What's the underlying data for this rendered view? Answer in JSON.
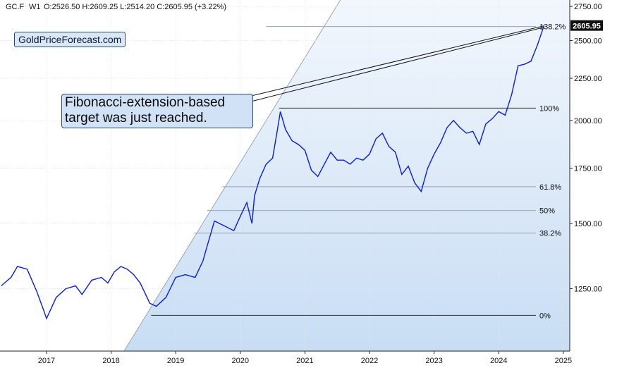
{
  "header": {
    "symbol": "GC.F",
    "interval": "W1",
    "ohlc": "O:2526.50  H:2609.25  L:2514.20  C:2605.95  (+3.22%)"
  },
  "logo": "GoldPriceForecast.com",
  "annotation": "Fibonacci-extension-based target was just reached.",
  "last_price": "2605.95",
  "chart_data": {
    "type": "line",
    "ylim": [
      1050,
      2800
    ],
    "y_ticks": [
      "2750.00",
      "2500.00",
      "2250.00",
      "2000.00",
      "1750.00",
      "1500.00",
      "1250.00"
    ],
    "y_tick_values": [
      2750,
      2500,
      2250,
      2000,
      1750,
      1500,
      1250
    ],
    "x_ticks": [
      "2017",
      "2018",
      "2019",
      "2020",
      "2021",
      "2022",
      "2023",
      "2024",
      "2025"
    ],
    "x_tick_values": [
      2017,
      2018,
      2019,
      2020,
      2021,
      2022,
      2023,
      2024,
      2025
    ],
    "xlim": [
      2016.28,
      2025.1
    ],
    "fib_levels": [
      {
        "label": "138.2%",
        "value": 2600
      },
      {
        "label": "100%",
        "value": 2070
      },
      {
        "label": "61.8%",
        "value": 1662
      },
      {
        "label": "50%",
        "value": 1555
      },
      {
        "label": "38.2%",
        "value": 1460
      },
      {
        "label": "0%",
        "value": 1160
      }
    ],
    "fib_start_x": 2018.62,
    "series": [
      {
        "x": [
          2016.3,
          2016.45,
          2016.55,
          2016.7,
          2016.85,
          2016.95,
          2017.0,
          2017.15,
          2017.3,
          2017.45,
          2017.55,
          2017.7,
          2017.85,
          2017.95,
          2018.05,
          2018.15,
          2018.25,
          2018.35,
          2018.45,
          2018.6,
          2018.7,
          2018.85,
          2019.0,
          2019.15,
          2019.3,
          2019.42,
          2019.5,
          2019.6,
          2019.75,
          2019.9,
          2020.0,
          2020.1,
          2020.18,
          2020.22,
          2020.3,
          2020.4,
          2020.5,
          2020.58,
          2020.62,
          2020.7,
          2020.8,
          2020.9,
          2021.0,
          2021.1,
          2021.2,
          2021.3,
          2021.4,
          2021.5,
          2021.6,
          2021.7,
          2021.8,
          2021.9,
          2022.0,
          2022.1,
          2022.2,
          2022.3,
          2022.4,
          2022.5,
          2022.6,
          2022.7,
          2022.8,
          2022.9,
          2023.0,
          2023.1,
          2023.2,
          2023.3,
          2023.4,
          2023.5,
          2023.6,
          2023.7,
          2023.8,
          2023.9,
          2024.0,
          2024.1,
          2024.2,
          2024.3,
          2024.4,
          2024.5,
          2024.6,
          2024.7
        ],
        "y": [
          1260,
          1290,
          1330,
          1320,
          1240,
          1180,
          1150,
          1220,
          1250,
          1260,
          1230,
          1280,
          1290,
          1270,
          1310,
          1330,
          1320,
          1300,
          1270,
          1200,
          1190,
          1220,
          1290,
          1300,
          1290,
          1350,
          1420,
          1510,
          1490,
          1470,
          1530,
          1590,
          1500,
          1620,
          1700,
          1770,
          1800,
          1960,
          2050,
          1950,
          1890,
          1870,
          1840,
          1740,
          1710,
          1770,
          1830,
          1790,
          1790,
          1770,
          1800,
          1790,
          1820,
          1900,
          1930,
          1860,
          1830,
          1720,
          1760,
          1680,
          1640,
          1750,
          1820,
          1880,
          1960,
          2000,
          1960,
          1930,
          1940,
          1870,
          1980,
          2010,
          2050,
          2030,
          2150,
          2330,
          2340,
          2360,
          2470,
          2605
        ]
      }
    ]
  }
}
